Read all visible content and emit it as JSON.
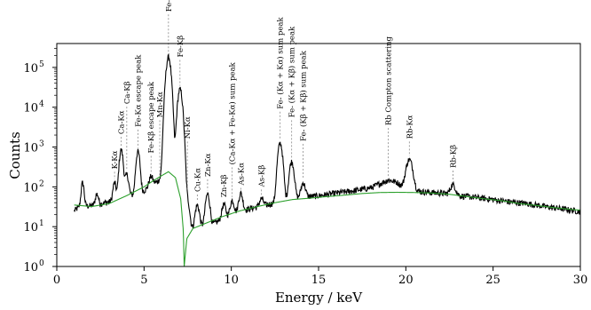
{
  "chart_data": {
    "type": "line",
    "xlabel": "Energy  /  keV",
    "ylabel": "Counts",
    "xlim": [
      0,
      30
    ],
    "ylim_log10": [
      0,
      5.6
    ],
    "yscale": "log",
    "grid": false,
    "legend": "none",
    "x_ticks": [
      0,
      5,
      10,
      15,
      20,
      25,
      30
    ],
    "y_ticks": [
      {
        "exp": 0,
        "label": "10",
        "sup": "0"
      },
      {
        "exp": 1,
        "label": "10",
        "sup": "1"
      },
      {
        "exp": 2,
        "label": "10",
        "sup": "2"
      },
      {
        "exp": 3,
        "label": "10",
        "sup": "3"
      },
      {
        "exp": 4,
        "label": "10",
        "sup": "4"
      },
      {
        "exp": 5,
        "label": "10",
        "sup": "5"
      }
    ],
    "colors": {
      "spectrum": "#000000",
      "background_fit": "#2ca02c"
    },
    "spectrum_baseline": [
      [
        1.0,
        25
      ],
      [
        1.3,
        32
      ],
      [
        2.0,
        34
      ],
      [
        3.0,
        42
      ],
      [
        4.0,
        55
      ],
      [
        5.0,
        80
      ],
      [
        5.5,
        110
      ],
      [
        6.0,
        170
      ],
      [
        6.3,
        200
      ],
      [
        6.7,
        180
      ],
      [
        7.0,
        70
      ],
      [
        7.2,
        15
      ],
      [
        7.5,
        8
      ],
      [
        8.0,
        10
      ],
      [
        9.0,
        12
      ],
      [
        10.0,
        20
      ],
      [
        11.0,
        28
      ],
      [
        12.0,
        35
      ],
      [
        13.0,
        45
      ],
      [
        14.0,
        55
      ],
      [
        15.0,
        60
      ],
      [
        16.0,
        70
      ],
      [
        17.0,
        80
      ],
      [
        18.0,
        95
      ],
      [
        19.0,
        150
      ],
      [
        19.5,
        130
      ],
      [
        20.0,
        85
      ],
      [
        21.0,
        75
      ],
      [
        22.0,
        70
      ],
      [
        23.0,
        60
      ],
      [
        24.0,
        55
      ],
      [
        25.0,
        48
      ],
      [
        26.0,
        42
      ],
      [
        27.0,
        38
      ],
      [
        28.0,
        32
      ],
      [
        29.0,
        28
      ],
      [
        30.0,
        24
      ]
    ],
    "peaks": [
      {
        "x": 1.48,
        "height": 95,
        "sigma": 0.07
      },
      {
        "x": 2.3,
        "height": 30,
        "sigma": 0.08
      },
      {
        "x": 3.31,
        "height": 80,
        "sigma": 0.08
      },
      {
        "x": 3.69,
        "height": 800,
        "sigma": 0.09
      },
      {
        "x": 4.01,
        "height": 150,
        "sigma": 0.09
      },
      {
        "x": 4.65,
        "height": 700,
        "sigma": 0.09
      },
      {
        "x": 5.4,
        "height": 80,
        "sigma": 0.1
      },
      {
        "x": 6.4,
        "height": 180000,
        "sigma": 0.11
      },
      {
        "x": 7.06,
        "height": 28000,
        "sigma": 0.11
      },
      {
        "x": 7.48,
        "height": 40,
        "sigma": 0.1
      },
      {
        "x": 8.05,
        "height": 25,
        "sigma": 0.1
      },
      {
        "x": 8.64,
        "height": 55,
        "sigma": 0.1
      },
      {
        "x": 9.57,
        "height": 20,
        "sigma": 0.1
      },
      {
        "x": 10.05,
        "height": 25,
        "sigma": 0.1
      },
      {
        "x": 10.54,
        "height": 45,
        "sigma": 0.1
      },
      {
        "x": 11.73,
        "height": 18,
        "sigma": 0.1
      },
      {
        "x": 12.8,
        "height": 1200,
        "sigma": 0.11
      },
      {
        "x": 13.46,
        "height": 380,
        "sigma": 0.11
      },
      {
        "x": 14.12,
        "height": 70,
        "sigma": 0.11
      },
      {
        "x": 20.2,
        "height": 400,
        "sigma": 0.16
      },
      {
        "x": 22.7,
        "height": 50,
        "sigma": 0.14
      }
    ],
    "background_fit": [
      [
        1.0,
        35
      ],
      [
        2.0,
        32
      ],
      [
        3.0,
        38
      ],
      [
        4.0,
        60
      ],
      [
        5.0,
        100
      ],
      [
        5.5,
        140
      ],
      [
        6.0,
        190
      ],
      [
        6.4,
        240
      ],
      [
        6.8,
        170
      ],
      [
        7.1,
        50
      ],
      [
        7.25,
        8
      ],
      [
        7.3,
        1.0
      ],
      [
        7.45,
        5
      ],
      [
        7.8,
        9
      ],
      [
        8.5,
        12
      ],
      [
        9.5,
        18
      ],
      [
        10.5,
        25
      ],
      [
        11.5,
        32
      ],
      [
        12.5,
        40
      ],
      [
        13.5,
        48
      ],
      [
        14.5,
        52
      ],
      [
        15.5,
        57
      ],
      [
        16.5,
        62
      ],
      [
        17.5,
        68
      ],
      [
        18.5,
        72
      ],
      [
        19.5,
        73
      ],
      [
        20.5,
        72
      ],
      [
        21.5,
        70
      ],
      [
        22.5,
        65
      ],
      [
        23.5,
        57
      ],
      [
        24.5,
        50
      ],
      [
        25.5,
        45
      ],
      [
        26.5,
        38
      ],
      [
        27.5,
        34
      ],
      [
        28.5,
        30
      ],
      [
        29.5,
        27
      ],
      [
        30.0,
        26
      ]
    ],
    "annotations": [
      {
        "text": "K-Kα",
        "x": 3.31,
        "top": 280
      },
      {
        "text": "Ca-Kα",
        "x": 3.69,
        "top": 2100
      },
      {
        "text": "Ca-Kβ",
        "x": 4.01,
        "top": 12000
      },
      {
        "text": "Fe-Kα escape peak",
        "x": 4.65,
        "top": 3200
      },
      {
        "text": "Fe-Kβ escape peak",
        "x": 5.4,
        "top": 700
      },
      {
        "text": "Mn-Kα",
        "x": 5.9,
        "top": 5500
      },
      {
        "text": "Fe-Kα",
        "x": 6.4,
        "top": 2500000
      },
      {
        "text": "Fe-Kβ",
        "x": 7.06,
        "top": 180000
      },
      {
        "text": "Ni-Kα",
        "x": 7.48,
        "top": 1600
      },
      {
        "text": "Cu-Kα",
        "x": 8.05,
        "top": 75
      },
      {
        "text": "Zn-Kα",
        "x": 8.64,
        "top": 180
      },
      {
        "text": "Zn-Kβ",
        "x": 9.57,
        "top": 55
      },
      {
        "text": "(Ca-Kα + Fe-Kα) sum peak",
        "x": 10.05,
        "top": 360
      },
      {
        "text": "As-Kα",
        "x": 10.54,
        "top": 110
      },
      {
        "text": "As-Kβ",
        "x": 11.73,
        "top": 100
      },
      {
        "text": "Fe- (Kα + Kα) sum peak",
        "x": 12.8,
        "top": 9000
      },
      {
        "text": "Fe-  (Kα + Kβ) sum peak",
        "x": 13.46,
        "top": 5500
      },
      {
        "text": "Fe-  (Kβ + Kβ) sum peak",
        "x": 14.12,
        "top": 1400
      },
      {
        "text": "Rb Compton scattering",
        "x": 19.0,
        "top": 3500
      },
      {
        "text": "Rb-Kα",
        "x": 20.2,
        "top": 1600
      },
      {
        "text": "Rb-Kβ",
        "x": 22.7,
        "top": 300
      }
    ]
  }
}
